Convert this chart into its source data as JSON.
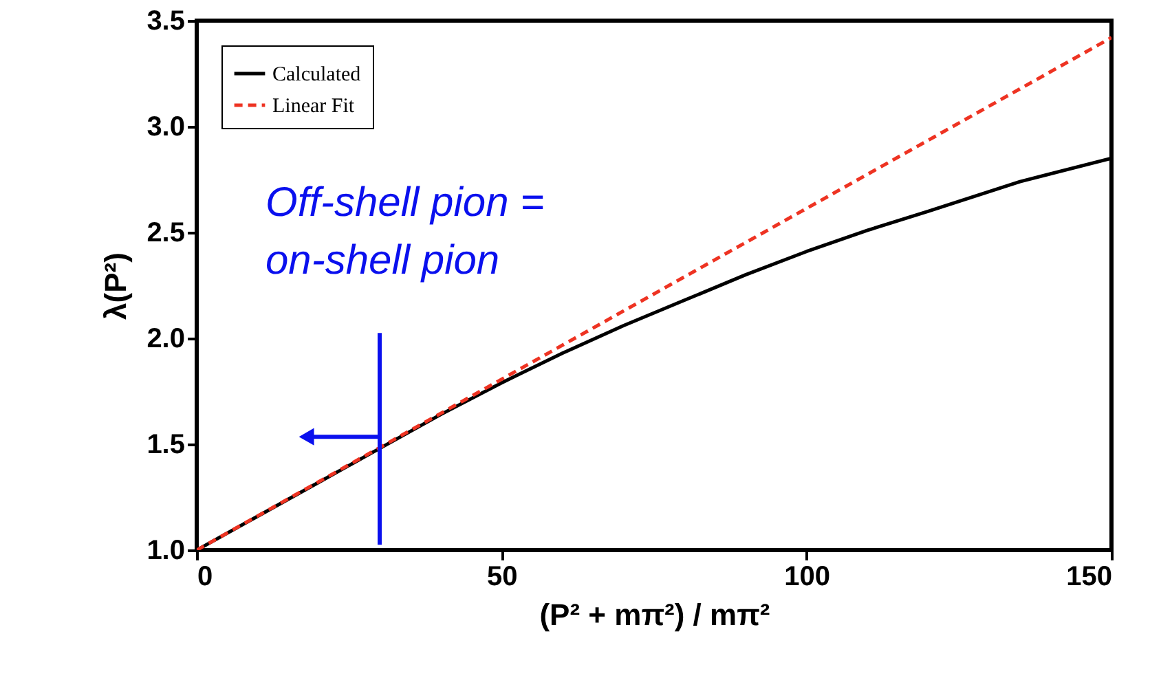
{
  "chart_data": {
    "type": "line",
    "xlabel": "(P² + mπ²) / mπ²",
    "ylabel": "λ(P²)",
    "xlim": [
      0,
      150
    ],
    "ylim": [
      1.0,
      3.5
    ],
    "xticks": [
      0,
      50,
      100,
      150
    ],
    "yticks": [
      {
        "value": 1.0,
        "label": "1.0"
      },
      1.5,
      {
        "value": 2.0,
        "label": "2.0"
      },
      2.5,
      {
        "value": 3.0,
        "label": "3.0"
      },
      3.5
    ],
    "grid": false,
    "legend": "top left",
    "series": [
      {
        "name": "Calculated",
        "color": "#000000",
        "line_style": "solid",
        "x": [
          0,
          10,
          20,
          30,
          40,
          50,
          60,
          70,
          80,
          90,
          100,
          110,
          120,
          135,
          150
        ],
        "values": [
          1.0,
          1.16,
          1.32,
          1.48,
          1.64,
          1.79,
          1.93,
          2.06,
          2.18,
          2.3,
          2.41,
          2.51,
          2.6,
          2.74,
          2.85
        ]
      },
      {
        "name": "Linear Fit",
        "color": "#ee3322",
        "line_style": "dashed",
        "x": [
          0,
          150
        ],
        "values": [
          1.0,
          3.42
        ]
      }
    ],
    "ref_lines": [
      {
        "axis": "x",
        "value": 30,
        "color": "#0a10ee"
      }
    ],
    "annotations": [
      "Off-shell pion =\non-shell pion"
    ]
  }
}
